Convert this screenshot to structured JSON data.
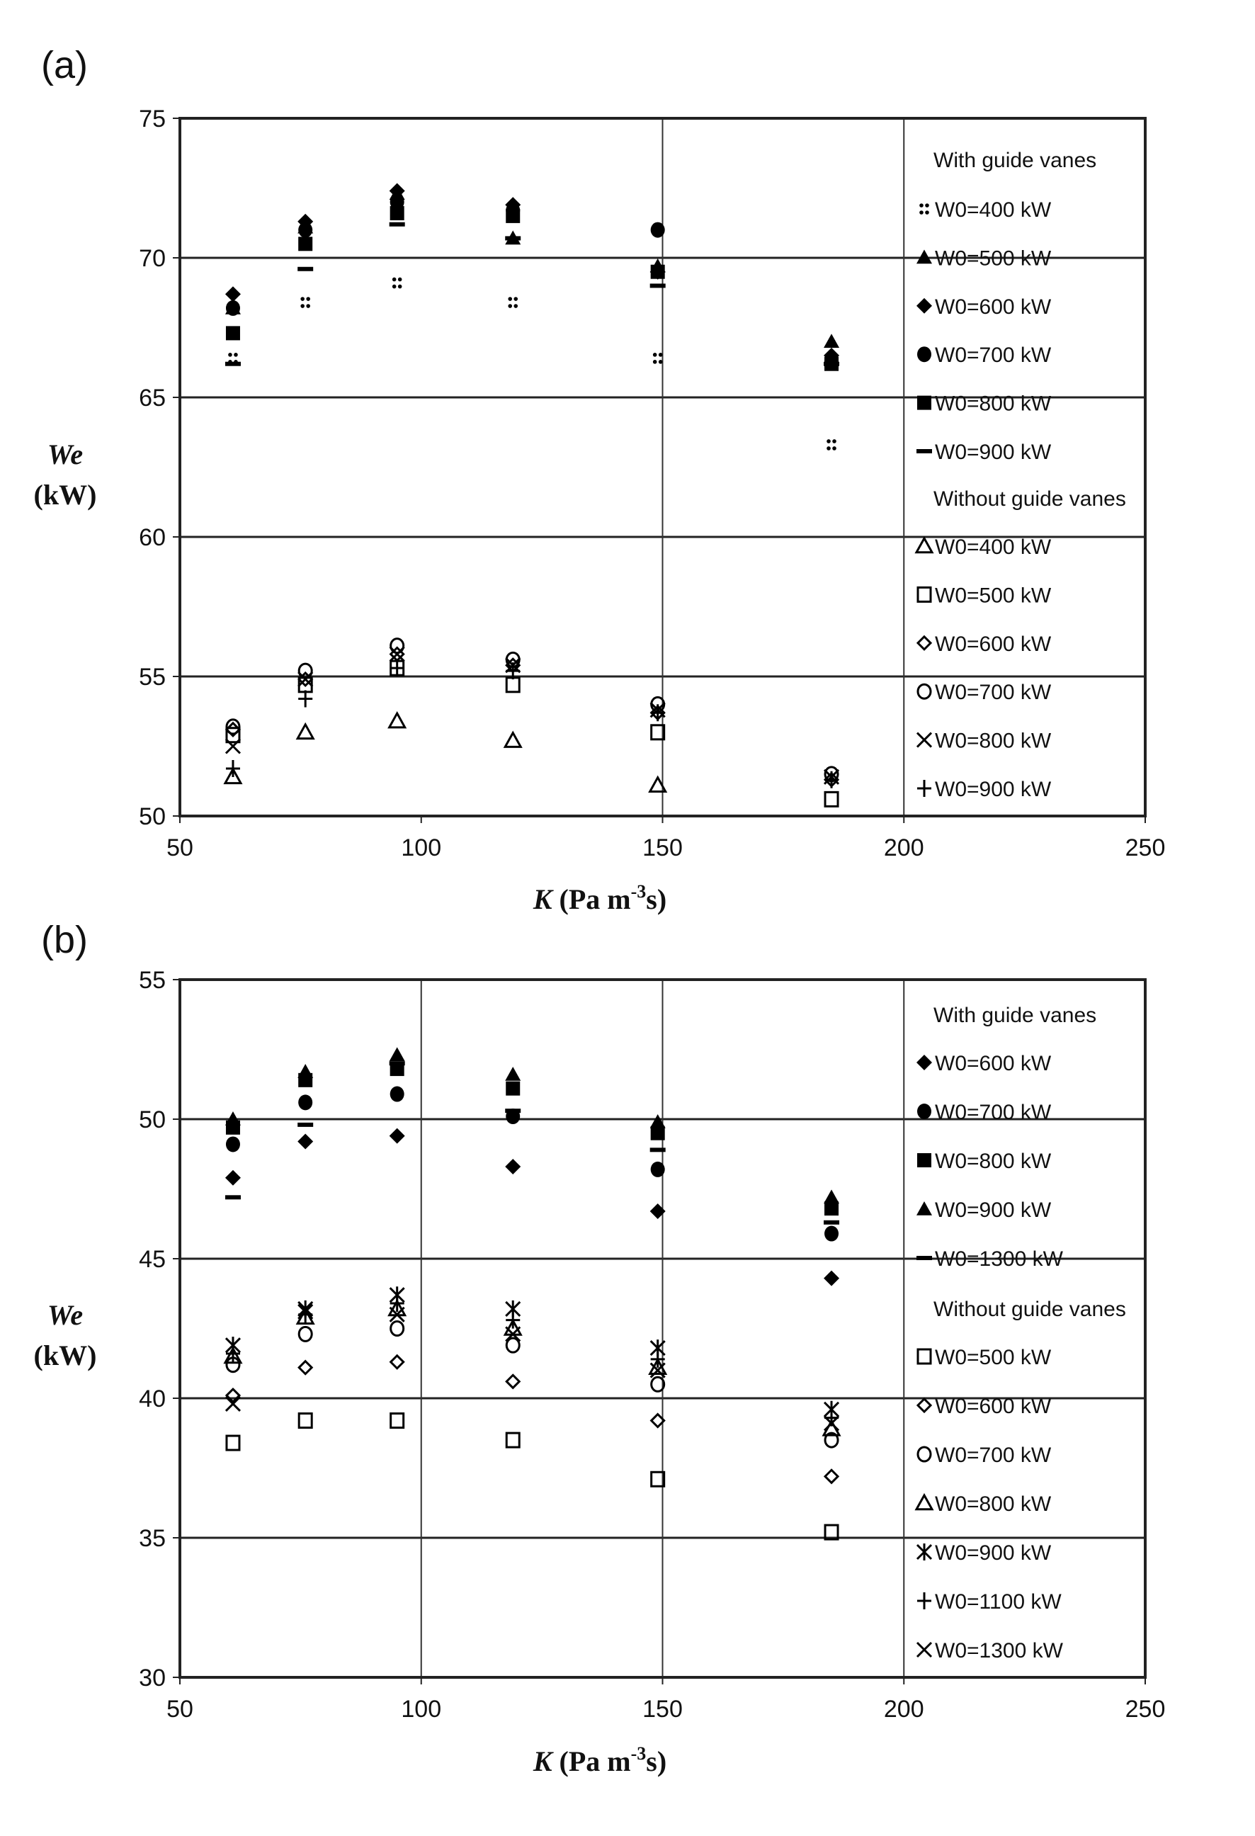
{
  "chart_data": [
    {
      "type": "scatter",
      "panel_label": "(a)",
      "xlabel_var": "K",
      "xlabel_unit": "(Pa m",
      "xlabel_sup": "-3",
      "xlabel_end": "s)",
      "ylabel_var": "We",
      "ylabel_unit": "(kW)",
      "xlim": [
        50,
        250
      ],
      "ylim": [
        50,
        75
      ],
      "xticks": [
        50,
        100,
        150,
        200,
        250
      ],
      "yticks": [
        50,
        55,
        60,
        65,
        70,
        75
      ],
      "hgrid": [
        55,
        60,
        65,
        70
      ],
      "vgrid": [
        150,
        200
      ],
      "x": [
        61,
        76,
        95,
        119,
        149,
        185
      ],
      "groups": [
        {
          "title": "With guide vanes",
          "series": [
            {
              "name": "W0=400 kW",
              "marker": "dots",
              "values": [
                66.4,
                68.4,
                69.1,
                68.4,
                66.4,
                63.3
              ]
            },
            {
              "name": "W0=500 kW",
              "marker": "triangle-filled",
              "values": [
                68.2,
                71.1,
                72.3,
                70.7,
                69.7,
                67.0
              ]
            },
            {
              "name": "W0=600 kW",
              "marker": "diamond-filled",
              "values": [
                68.7,
                71.3,
                72.4,
                71.9,
                69.5,
                66.5
              ]
            },
            {
              "name": "W0=700 kW",
              "marker": "circle-filled",
              "values": [
                68.2,
                71.0,
                72.0,
                71.7,
                71.0,
                66.3
              ]
            },
            {
              "name": "W0=800 kW",
              "marker": "square-filled",
              "values": [
                67.3,
                70.5,
                71.6,
                71.5,
                69.5,
                66.2
              ]
            },
            {
              "name": "W0=900 kW",
              "marker": "dash",
              "values": [
                66.2,
                69.6,
                71.2,
                70.7,
                69.0,
                66.2
              ]
            }
          ]
        },
        {
          "title": "Without guide vanes",
          "series": [
            {
              "name": "W0=400 kW",
              "marker": "triangle-open",
              "values": [
                51.4,
                53.0,
                53.4,
                52.7,
                51.1,
                null
              ]
            },
            {
              "name": "W0=500 kW",
              "marker": "square-open",
              "values": [
                52.9,
                54.7,
                55.3,
                54.7,
                53.0,
                50.6
              ]
            },
            {
              "name": "W0=600 kW",
              "marker": "diamond-open",
              "values": [
                53.1,
                54.9,
                55.8,
                55.4,
                53.7,
                51.3
              ]
            },
            {
              "name": "W0=700 kW",
              "marker": "circle-open",
              "values": [
                53.2,
                55.2,
                56.1,
                55.6,
                54.0,
                51.5
              ]
            },
            {
              "name": "W0=800 kW",
              "marker": "x",
              "values": [
                52.5,
                54.9,
                55.8,
                55.4,
                53.8,
                51.4
              ]
            },
            {
              "name": "W0=900 kW",
              "marker": "plus",
              "values": [
                51.7,
                54.2,
                55.3,
                55.2,
                53.7,
                51.3
              ]
            }
          ]
        }
      ]
    },
    {
      "type": "scatter",
      "panel_label": "(b)",
      "xlabel_var": "K",
      "xlabel_unit": "(Pa m",
      "xlabel_sup": "-3",
      "xlabel_end": "s)",
      "ylabel_var": "We",
      "ylabel_unit": "(kW)",
      "xlim": [
        50,
        250
      ],
      "ylim": [
        30,
        55
      ],
      "xticks": [
        50,
        100,
        150,
        200,
        250
      ],
      "yticks": [
        30,
        35,
        40,
        45,
        50,
        55
      ],
      "hgrid": [
        35,
        40,
        45,
        50
      ],
      "vgrid": [
        100,
        150,
        200
      ],
      "x": [
        61,
        76,
        95,
        119,
        149,
        185
      ],
      "groups": [
        {
          "title": "With guide vanes",
          "series": [
            {
              "name": "W0=600 kW",
              "marker": "diamond-filled",
              "values": [
                47.9,
                49.2,
                49.4,
                48.3,
                46.7,
                44.3
              ]
            },
            {
              "name": "W0=700 kW",
              "marker": "circle-filled",
              "values": [
                49.1,
                50.6,
                50.9,
                50.1,
                48.2,
                45.9
              ]
            },
            {
              "name": "W0=800 kW",
              "marker": "square-filled",
              "values": [
                49.7,
                51.4,
                51.8,
                51.1,
                49.5,
                46.8
              ]
            },
            {
              "name": "W0=900 kW",
              "marker": "triangle-filled",
              "values": [
                50.0,
                51.7,
                52.3,
                51.6,
                49.9,
                47.2
              ]
            },
            {
              "name": "W0=1300 kW",
              "marker": "dash",
              "values": [
                47.2,
                49.8,
                52.0,
                50.3,
                48.9,
                46.3
              ]
            }
          ]
        },
        {
          "title": "Without guide vanes",
          "series": [
            {
              "name": "W0=500 kW",
              "marker": "square-open",
              "values": [
                38.4,
                39.2,
                39.2,
                38.5,
                37.1,
                35.2
              ]
            },
            {
              "name": "W0=600 kW",
              "marker": "diamond-open",
              "values": [
                40.1,
                41.1,
                41.3,
                40.6,
                39.2,
                37.2
              ]
            },
            {
              "name": "W0=700 kW",
              "marker": "circle-open",
              "values": [
                41.2,
                42.3,
                42.5,
                41.9,
                40.5,
                38.5
              ]
            },
            {
              "name": "W0=800 kW",
              "marker": "triangle-open",
              "values": [
                41.5,
                42.9,
                43.2,
                42.5,
                41.1,
                38.9
              ]
            },
            {
              "name": "W0=900 kW",
              "marker": "asterisk",
              "values": [
                41.9,
                43.2,
                43.7,
                43.2,
                41.8,
                39.6
              ]
            },
            {
              "name": "W0=1100 kW",
              "marker": "plus",
              "values": [
                41.6,
                43.0,
                43.4,
                42.8,
                41.4,
                39.3
              ]
            },
            {
              "name": "W0=1300 kW",
              "marker": "x",
              "values": [
                39.8,
                43.1,
                43.0,
                42.3,
                41.0,
                39.1
              ]
            }
          ]
        }
      ]
    }
  ]
}
